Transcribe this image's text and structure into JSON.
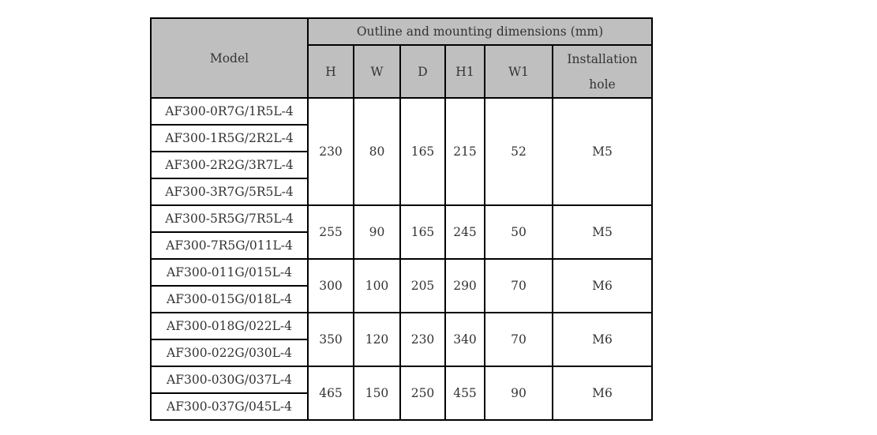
{
  "header": {
    "model": "Model",
    "group": "Outline and mounting dimensions (mm)",
    "columns": [
      "H",
      "W",
      "D",
      "H1",
      "W1",
      "Installation hole"
    ]
  },
  "groups": [
    {
      "models": [
        "AF300-0R7G/1R5L-4",
        "AF300-1R5G/2R2L-4",
        "AF300-2R2G/3R7L-4",
        "AF300-3R7G/5R5L-4"
      ],
      "values": [
        "230",
        "80",
        "165",
        "215",
        "52",
        "M5"
      ]
    },
    {
      "models": [
        "AF300-5R5G/7R5L-4",
        "AF300-7R5G/011L-4"
      ],
      "values": [
        "255",
        "90",
        "165",
        "245",
        "50",
        "M5"
      ]
    },
    {
      "models": [
        "AF300-011G/015L-4",
        "AF300-015G/018L-4"
      ],
      "values": [
        "300",
        "100",
        "205",
        "290",
        "70",
        "M6"
      ]
    },
    {
      "models": [
        "AF300-018G/022L-4",
        "AF300-022G/030L-4"
      ],
      "values": [
        "350",
        "120",
        "230",
        "340",
        "70",
        "M6"
      ]
    },
    {
      "models": [
        "AF300-030G/037L-4",
        "AF300-037G/045L-4"
      ],
      "values": [
        "465",
        "150",
        "250",
        "455",
        "90",
        "M6"
      ]
    }
  ]
}
